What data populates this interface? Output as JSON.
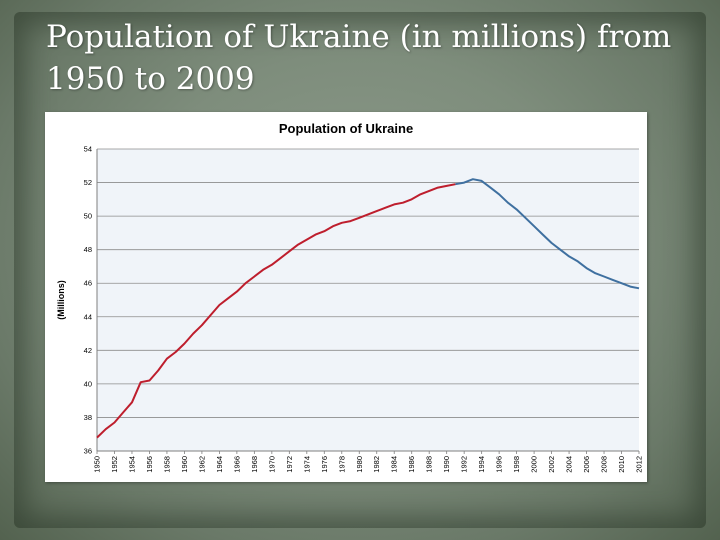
{
  "slide": {
    "title": "Population of Ukraine (in millions) from 1950 to 2009"
  },
  "chart_data": {
    "type": "line",
    "title": "Population of Ukraine",
    "xlabel": "",
    "ylabel": "(Millions)",
    "xlim": [
      1950,
      2012
    ],
    "ylim": [
      36,
      54
    ],
    "y_ticks": [
      36,
      38,
      40,
      42,
      44,
      46,
      48,
      50,
      52,
      54
    ],
    "x_ticks": [
      1950,
      1952,
      1954,
      1956,
      1958,
      1960,
      1962,
      1964,
      1966,
      1968,
      1970,
      1972,
      1974,
      1976,
      1978,
      1980,
      1982,
      1984,
      1986,
      1988,
      1990,
      1992,
      1994,
      1996,
      1998,
      2000,
      2002,
      2004,
      2006,
      2008,
      2010,
      2012
    ],
    "grid": true,
    "legend": "none",
    "series": [
      {
        "color": "#be1e2d",
        "x": [
          1950,
          1951,
          1952,
          1953,
          1954,
          1955,
          1956,
          1957,
          1958,
          1959,
          1960,
          1961,
          1962,
          1963,
          1964,
          1965,
          1966,
          1967,
          1968,
          1969,
          1970,
          1971,
          1972,
          1973,
          1974,
          1975,
          1976,
          1977,
          1978,
          1979,
          1980,
          1981,
          1982,
          1983,
          1984,
          1985,
          1986,
          1987,
          1988,
          1989,
          1990,
          1991
        ],
        "values": [
          36.8,
          37.3,
          37.7,
          38.3,
          38.9,
          40.1,
          40.2,
          40.8,
          41.5,
          41.9,
          42.4,
          43.0,
          43.5,
          44.1,
          44.7,
          45.1,
          45.5,
          46.0,
          46.4,
          46.8,
          47.1,
          47.5,
          47.9,
          48.3,
          48.6,
          48.9,
          49.1,
          49.4,
          49.6,
          49.7,
          49.9,
          50.1,
          50.3,
          50.5,
          50.7,
          50.8,
          51.0,
          51.3,
          51.5,
          51.7,
          51.8,
          51.9
        ]
      },
      {
        "color": "#3f70a0",
        "x": [
          1991,
          1992,
          1993,
          1994,
          1995,
          1996,
          1997,
          1998,
          1999,
          2000,
          2001,
          2002,
          2003,
          2004,
          2005,
          2006,
          2007,
          2008,
          2009,
          2010,
          2011,
          2012
        ],
        "values": [
          51.9,
          52.0,
          52.2,
          52.1,
          51.7,
          51.3,
          50.8,
          50.4,
          49.9,
          49.4,
          48.9,
          48.4,
          48.0,
          47.6,
          47.3,
          46.9,
          46.6,
          46.4,
          46.2,
          46.0,
          45.8,
          45.7
        ]
      }
    ]
  }
}
